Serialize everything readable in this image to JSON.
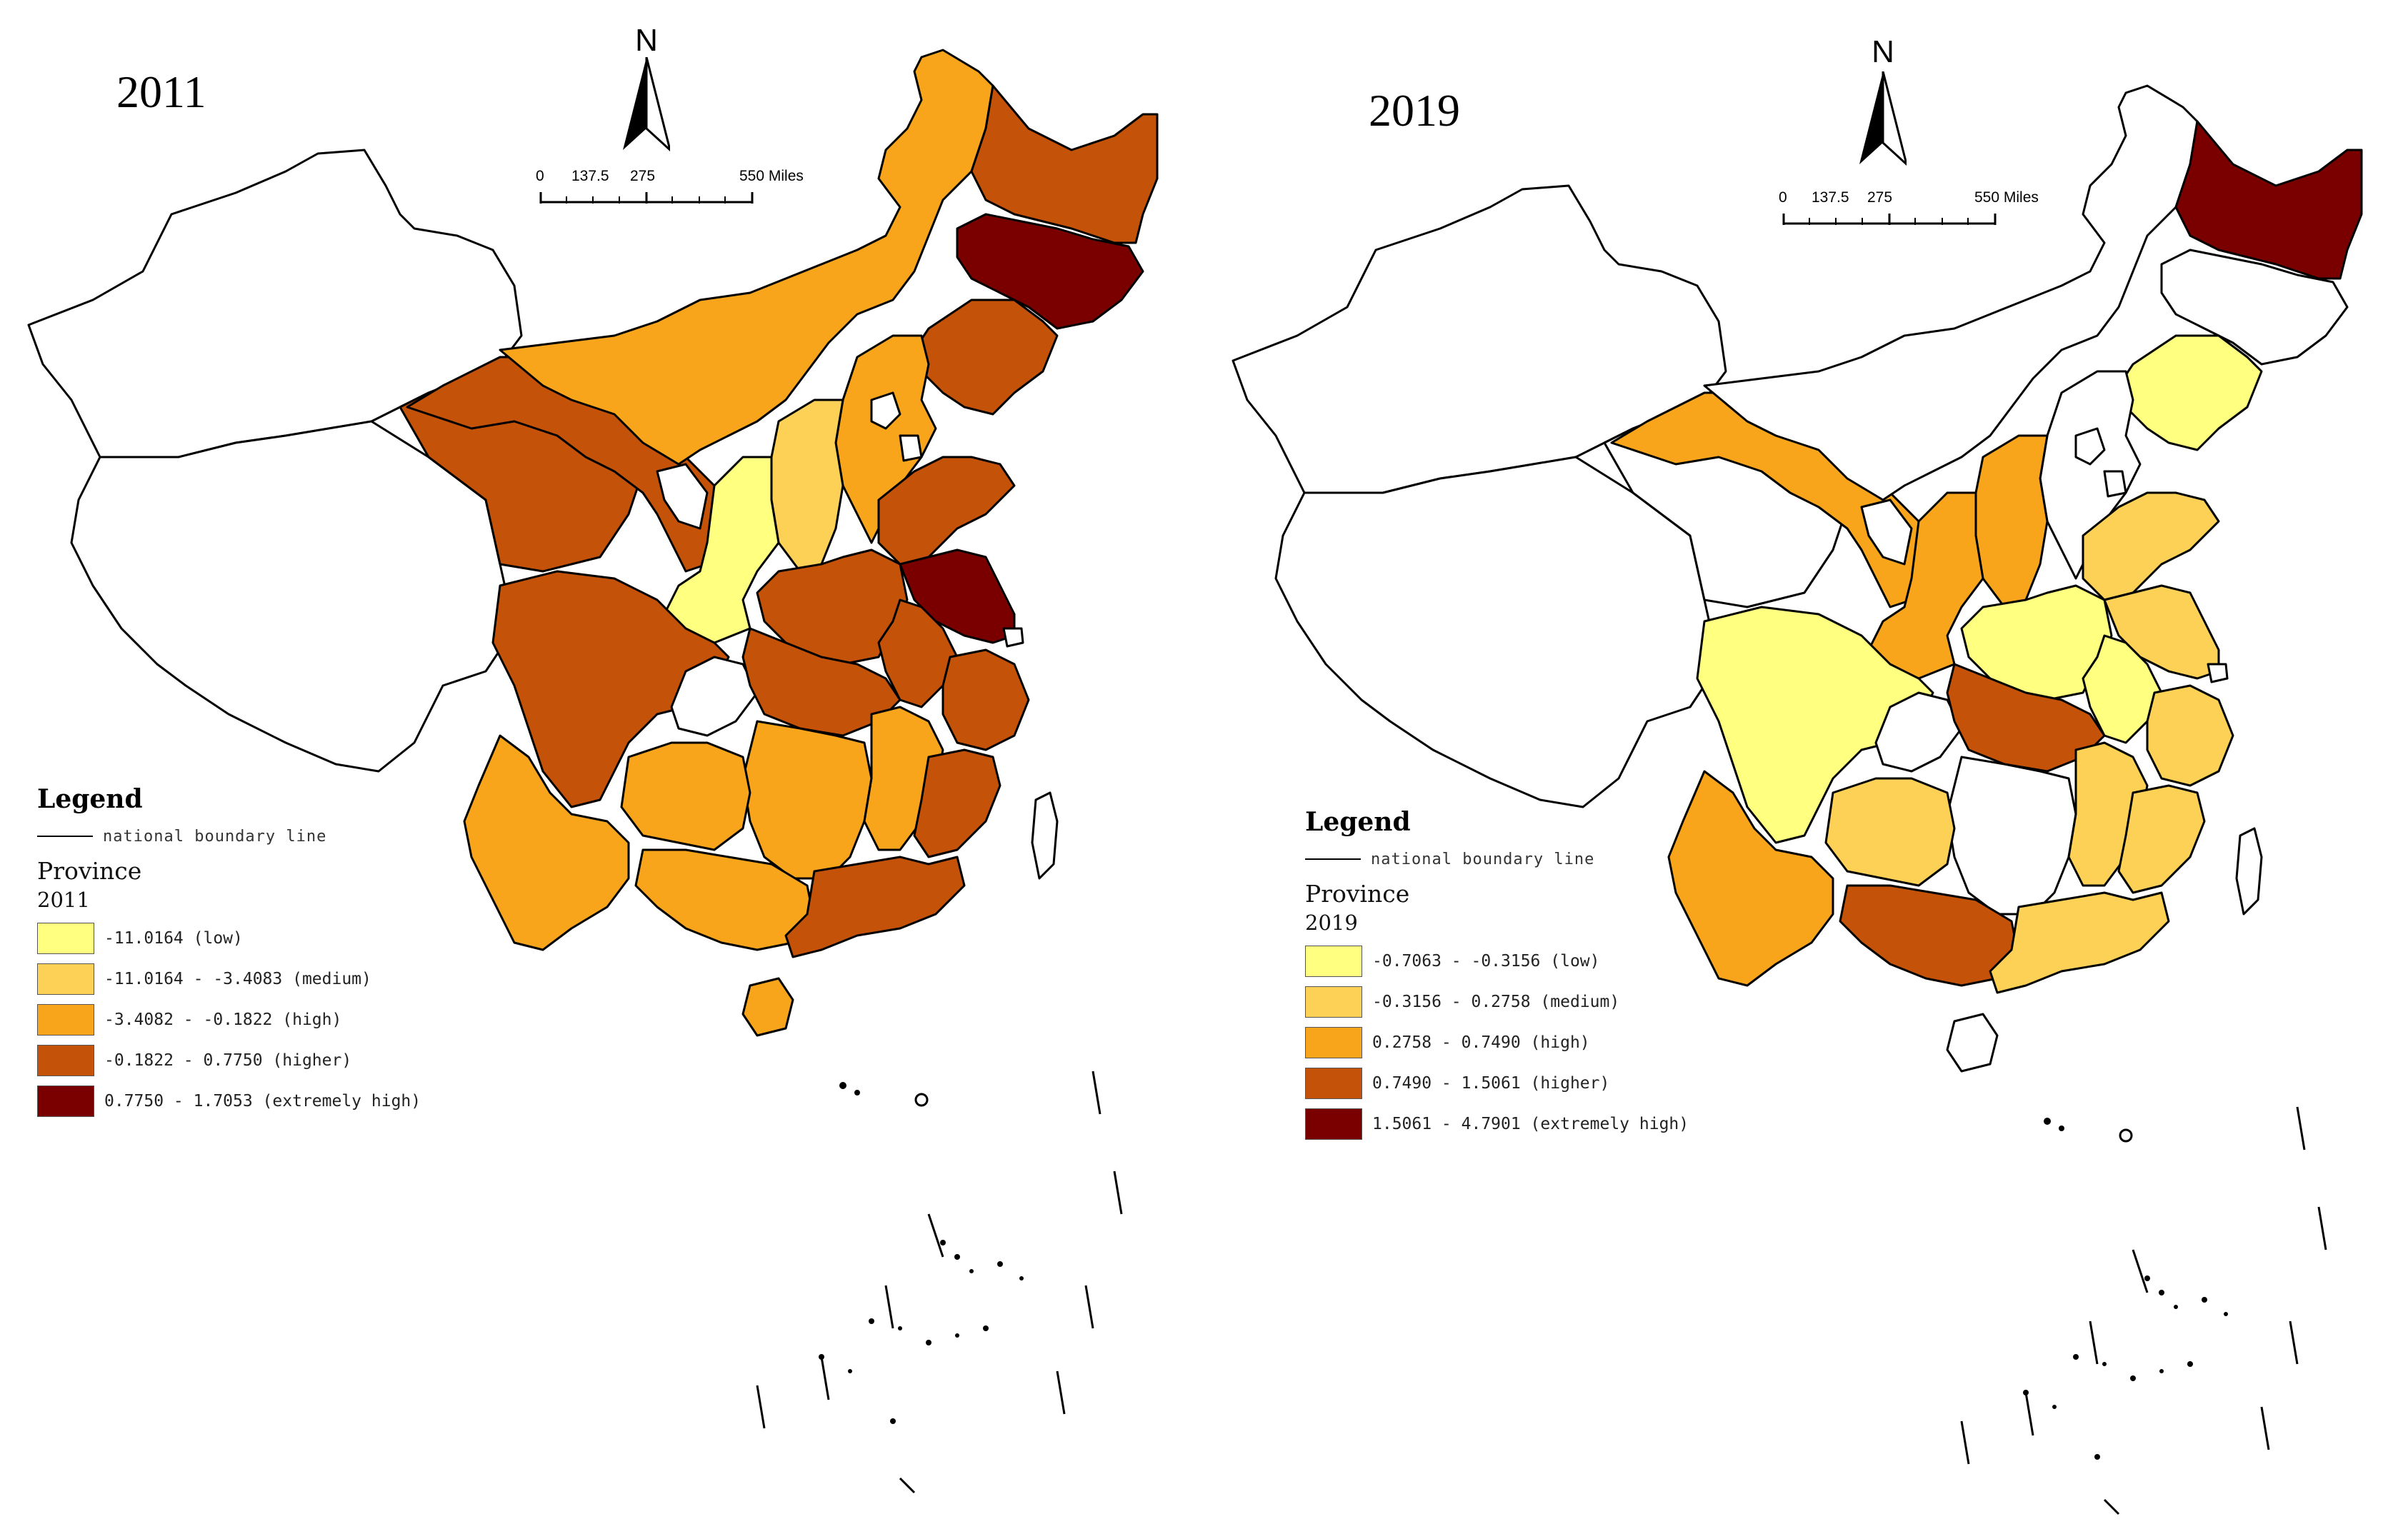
{
  "colors": {
    "low": "#ffff80",
    "medium": "#fdd056",
    "high": "#f8a51c",
    "higher": "#c45208",
    "extremely_high": "#7a0000",
    "no_data": "#ffffff",
    "boundary": "#000000"
  },
  "maps": [
    {
      "year_title": "2011",
      "north_label": "N",
      "scale_labels": [
        "0",
        "137.5",
        "275",
        "550 Miles"
      ],
      "legend": {
        "title": "Legend",
        "boundary_label": "national boundary line",
        "layer_title": "Province",
        "layer_subtitle": "2011",
        "classes": [
          {
            "label": "-11.0164 (low)",
            "color": "#ffff80"
          },
          {
            "label": "-11.0164 - -3.4083 (medium)",
            "color": "#fdd056"
          },
          {
            "label": "-3.4082 - -0.1822 (high)",
            "color": "#f8a51c"
          },
          {
            "label": "-0.1822 - 0.7750 (higher)",
            "color": "#c45208"
          },
          {
            "label": "0.7750 - 1.7053 (extremely high)",
            "color": "#7a0000"
          }
        ]
      }
    },
    {
      "year_title": "2019",
      "north_label": "N",
      "scale_labels": [
        "0",
        "137.5",
        "275",
        "550 Miles"
      ],
      "legend": {
        "title": "Legend",
        "boundary_label": "national boundary line",
        "layer_title": "Province",
        "layer_subtitle": "2019",
        "classes": [
          {
            "label": "-0.7063 - -0.3156 (low)",
            "color": "#ffff80"
          },
          {
            "label": "-0.3156 - 0.2758 (medium)",
            "color": "#fdd056"
          },
          {
            "label": "0.2758 - 0.7490 (high)",
            "color": "#f8a51c"
          },
          {
            "label": "0.7490 - 1.5061 (higher)",
            "color": "#c45208"
          },
          {
            "label": "1.5061 - 4.7901 (extremely high)",
            "color": "#7a0000"
          }
        ]
      }
    }
  ],
  "regions_2011": {
    "heilongjiang": "higher",
    "jilin": "extremely_high",
    "liaoning": "higher",
    "inner_mongolia": "high",
    "beijing": "no_data",
    "tianjin": "no_data",
    "hebei": "high",
    "shanxi": "medium",
    "shandong": "higher",
    "henan": "higher",
    "jiangsu": "extremely_high",
    "anhui": "higher",
    "shaanxi": "low",
    "ningxia": "no_data",
    "gansu": "higher",
    "qinghai": "higher",
    "sichuan": "higher",
    "chongqing": "no_data",
    "hubei": "higher",
    "hunan": "high",
    "jiangxi": "high",
    "zhejiang": "higher",
    "fujian": "higher",
    "guangdong": "higher",
    "guangxi": "high",
    "guizhou": "high",
    "yunnan": "high",
    "hainan": "high",
    "xinjiang": "no_data",
    "tibet": "no_data",
    "shanghai": "no_data",
    "taiwan": "no_data"
  },
  "regions_2019": {
    "heilongjiang": "extremely_high",
    "jilin": "no_data",
    "liaoning": "low",
    "inner_mongolia": "no_data",
    "beijing": "no_data",
    "tianjin": "no_data",
    "hebei": "no_data",
    "shanxi": "high",
    "shandong": "medium",
    "henan": "low",
    "jiangsu": "medium",
    "anhui": "low",
    "shaanxi": "high",
    "ningxia": "no_data",
    "gansu": "high",
    "qinghai": "no_data",
    "sichuan": "low",
    "chongqing": "no_data",
    "hubei": "higher",
    "hunan": "no_data",
    "jiangxi": "medium",
    "zhejiang": "medium",
    "fujian": "medium",
    "guangdong": "medium",
    "guangxi": "higher",
    "guizhou": "medium",
    "yunnan": "high",
    "hainan": "no_data",
    "xinjiang": "no_data",
    "tibet": "no_data",
    "shanghai": "no_data",
    "taiwan": "no_data"
  }
}
